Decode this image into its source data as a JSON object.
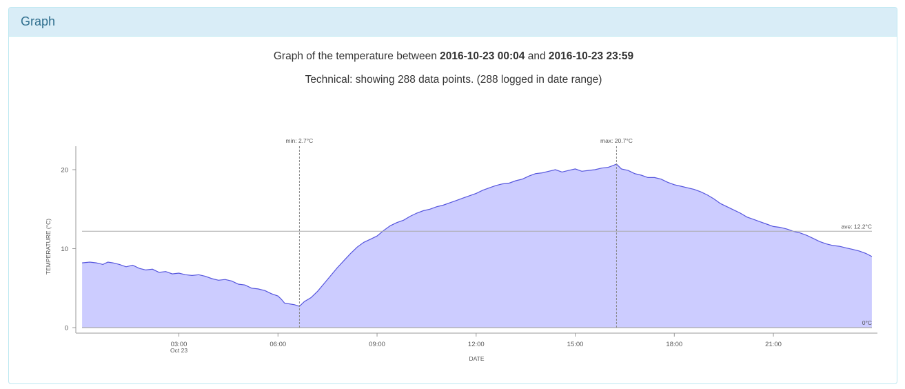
{
  "panel": {
    "heading": "Graph"
  },
  "title": {
    "prefix": "Graph of the temperature between ",
    "start": "2016-10-23 00:04",
    "conj": " and ",
    "end": "2016-10-23 23:59"
  },
  "technical": "Technical: showing 288 data points. (288 logged in date range)",
  "chart_data": {
    "type": "area",
    "xlabel": "DATE",
    "ylabel": "TEMPERATURE (°C)",
    "x_unit": "hours since 2016-10-23 00:00",
    "xlim": [
      0.067,
      23.983
    ],
    "ylim": [
      -0.7,
      22.8
    ],
    "x_ticks": [
      {
        "value": 3,
        "label": "03:00",
        "sublabel": "Oct 23"
      },
      {
        "value": 6,
        "label": "06:00"
      },
      {
        "value": 9,
        "label": "09:00"
      },
      {
        "value": 12,
        "label": "12:00"
      },
      {
        "value": 15,
        "label": "15:00"
      },
      {
        "value": 18,
        "label": "18:00"
      },
      {
        "value": 21,
        "label": "21:00"
      }
    ],
    "y_ticks": [
      0,
      10,
      20
    ],
    "annotations": {
      "min": {
        "label": "min: 2.7°C",
        "x": 6.65,
        "value": 2.7
      },
      "max": {
        "label": "max: 20.7°C",
        "x": 16.25,
        "value": 20.7
      },
      "average": {
        "label": "ave: 12.2°C",
        "value": 12.2
      },
      "zero": {
        "label": "0°C",
        "value": 0
      }
    },
    "colors": {
      "fill": "#ccccff",
      "line": "#5555dd",
      "grid": "#888888"
    },
    "series": [
      {
        "points": [
          [
            0.07,
            8.2
          ],
          [
            0.3,
            8.3
          ],
          [
            0.5,
            8.2
          ],
          [
            0.7,
            8.0
          ],
          [
            0.85,
            8.3
          ],
          [
            1.0,
            8.2
          ],
          [
            1.2,
            8.0
          ],
          [
            1.4,
            7.7
          ],
          [
            1.6,
            7.9
          ],
          [
            1.8,
            7.5
          ],
          [
            2.0,
            7.3
          ],
          [
            2.2,
            7.4
          ],
          [
            2.4,
            7.0
          ],
          [
            2.6,
            7.1
          ],
          [
            2.8,
            6.8
          ],
          [
            3.0,
            6.9
          ],
          [
            3.2,
            6.7
          ],
          [
            3.4,
            6.6
          ],
          [
            3.6,
            6.7
          ],
          [
            3.8,
            6.5
          ],
          [
            4.0,
            6.2
          ],
          [
            4.2,
            6.0
          ],
          [
            4.4,
            6.1
          ],
          [
            4.6,
            5.9
          ],
          [
            4.8,
            5.5
          ],
          [
            5.0,
            5.4
          ],
          [
            5.2,
            5.0
          ],
          [
            5.4,
            4.9
          ],
          [
            5.6,
            4.7
          ],
          [
            5.8,
            4.3
          ],
          [
            6.0,
            4.0
          ],
          [
            6.1,
            3.6
          ],
          [
            6.2,
            3.1
          ],
          [
            6.35,
            3.0
          ],
          [
            6.5,
            2.9
          ],
          [
            6.65,
            2.7
          ],
          [
            6.8,
            3.3
          ],
          [
            7.0,
            3.8
          ],
          [
            7.2,
            4.6
          ],
          [
            7.4,
            5.6
          ],
          [
            7.6,
            6.6
          ],
          [
            7.8,
            7.6
          ],
          [
            8.0,
            8.5
          ],
          [
            8.2,
            9.4
          ],
          [
            8.4,
            10.2
          ],
          [
            8.6,
            10.8
          ],
          [
            8.8,
            11.2
          ],
          [
            9.0,
            11.6
          ],
          [
            9.2,
            12.3
          ],
          [
            9.4,
            12.9
          ],
          [
            9.6,
            13.3
          ],
          [
            9.8,
            13.6
          ],
          [
            10.0,
            14.1
          ],
          [
            10.2,
            14.5
          ],
          [
            10.4,
            14.8
          ],
          [
            10.6,
            15.0
          ],
          [
            10.8,
            15.3
          ],
          [
            11.0,
            15.5
          ],
          [
            11.2,
            15.8
          ],
          [
            11.4,
            16.1
          ],
          [
            11.6,
            16.4
          ],
          [
            11.8,
            16.7
          ],
          [
            12.0,
            17.0
          ],
          [
            12.2,
            17.4
          ],
          [
            12.4,
            17.7
          ],
          [
            12.6,
            18.0
          ],
          [
            12.8,
            18.2
          ],
          [
            13.0,
            18.3
          ],
          [
            13.2,
            18.6
          ],
          [
            13.4,
            18.8
          ],
          [
            13.6,
            19.2
          ],
          [
            13.8,
            19.5
          ],
          [
            14.0,
            19.6
          ],
          [
            14.2,
            19.8
          ],
          [
            14.4,
            20.0
          ],
          [
            14.6,
            19.7
          ],
          [
            14.8,
            19.9
          ],
          [
            15.0,
            20.1
          ],
          [
            15.2,
            19.8
          ],
          [
            15.4,
            19.9
          ],
          [
            15.6,
            20.0
          ],
          [
            15.8,
            20.2
          ],
          [
            16.0,
            20.3
          ],
          [
            16.25,
            20.7
          ],
          [
            16.4,
            20.1
          ],
          [
            16.6,
            19.9
          ],
          [
            16.8,
            19.5
          ],
          [
            17.0,
            19.3
          ],
          [
            17.2,
            19.0
          ],
          [
            17.4,
            19.0
          ],
          [
            17.6,
            18.8
          ],
          [
            17.8,
            18.4
          ],
          [
            18.0,
            18.1
          ],
          [
            18.2,
            17.9
          ],
          [
            18.4,
            17.7
          ],
          [
            18.6,
            17.5
          ],
          [
            18.8,
            17.2
          ],
          [
            19.0,
            16.8
          ],
          [
            19.2,
            16.3
          ],
          [
            19.4,
            15.7
          ],
          [
            19.6,
            15.3
          ],
          [
            19.8,
            14.9
          ],
          [
            20.0,
            14.5
          ],
          [
            20.2,
            14.0
          ],
          [
            20.4,
            13.7
          ],
          [
            20.6,
            13.4
          ],
          [
            20.8,
            13.1
          ],
          [
            21.0,
            12.8
          ],
          [
            21.2,
            12.7
          ],
          [
            21.4,
            12.5
          ],
          [
            21.6,
            12.2
          ],
          [
            21.8,
            12.0
          ],
          [
            22.0,
            11.7
          ],
          [
            22.2,
            11.3
          ],
          [
            22.4,
            10.9
          ],
          [
            22.6,
            10.6
          ],
          [
            22.8,
            10.4
          ],
          [
            23.0,
            10.3
          ],
          [
            23.2,
            10.1
          ],
          [
            23.4,
            9.9
          ],
          [
            23.6,
            9.7
          ],
          [
            23.8,
            9.4
          ],
          [
            23.98,
            9.0
          ]
        ]
      }
    ]
  }
}
